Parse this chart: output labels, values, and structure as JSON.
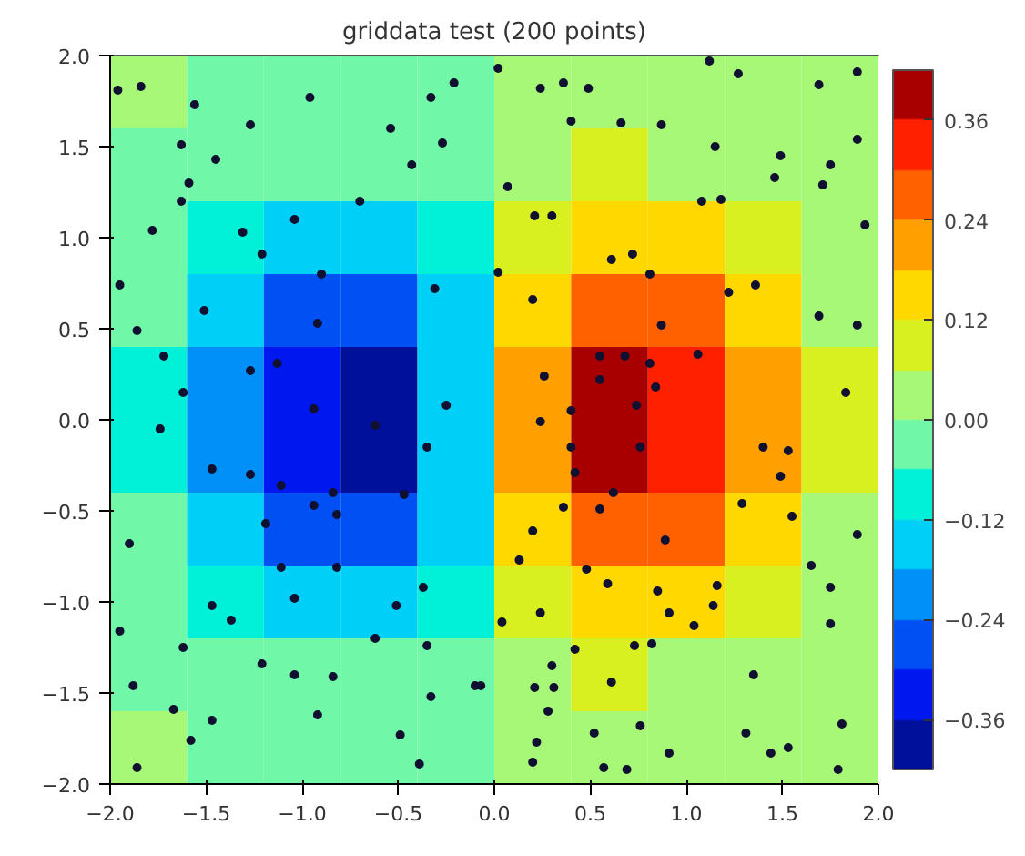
{
  "chart_data": {
    "type": "heatmap",
    "title": "griddata test (200 points)",
    "x": [
      -1.8,
      -1.4,
      -1.0,
      -0.6,
      -0.2,
      0.2,
      0.6,
      1.0,
      1.4,
      1.8
    ],
    "y": [
      1.8,
      1.4,
      1.0,
      0.6,
      0.2,
      -0.2,
      -0.6,
      -1.0,
      -1.4,
      -1.8
    ],
    "cells": [
      [
        0.0,
        -0.01,
        -0.01,
        -0.02,
        -0.01,
        0.01,
        0.02,
        0.01,
        0.01,
        0.0
      ],
      [
        -0.01,
        -0.03,
        -0.05,
        -0.06,
        -0.03,
        0.03,
        0.06,
        0.05,
        0.03,
        0.01
      ],
      [
        -0.03,
        -0.07,
        -0.14,
        -0.15,
        -0.07,
        0.07,
        0.15,
        0.14,
        0.07,
        0.03
      ],
      [
        -0.05,
        -0.14,
        -0.26,
        -0.29,
        -0.13,
        0.13,
        0.29,
        0.26,
        0.14,
        0.05
      ],
      [
        -0.07,
        -0.19,
        -0.35,
        -0.4,
        -0.18,
        0.18,
        0.4,
        0.35,
        0.19,
        0.07
      ],
      [
        -0.07,
        -0.19,
        -0.35,
        -0.4,
        -0.18,
        0.18,
        0.4,
        0.35,
        0.19,
        0.07
      ],
      [
        -0.05,
        -0.14,
        -0.26,
        -0.29,
        -0.13,
        0.13,
        0.29,
        0.26,
        0.14,
        0.05
      ],
      [
        -0.03,
        -0.07,
        -0.14,
        -0.15,
        -0.07,
        0.07,
        0.15,
        0.14,
        0.07,
        0.03
      ],
      [
        -0.01,
        -0.03,
        -0.05,
        -0.06,
        -0.03,
        0.03,
        0.06,
        0.05,
        0.03,
        0.01
      ],
      [
        0.0,
        -0.01,
        -0.01,
        -0.02,
        -0.01,
        0.01,
        0.02,
        0.01,
        0.01,
        0.0
      ]
    ],
    "colors": [
      "#00109a",
      "#0018f0",
      "#0050f4",
      "#0090f8",
      "#00d0f8",
      "#00f0d8",
      "#70f8a8",
      "#a8f878",
      "#d8f020",
      "#ffd800",
      "#ffa000",
      "#ff6000",
      "#ff2000",
      "#a80000"
    ],
    "clim": [
      -0.42,
      0.42
    ],
    "cticks": [
      {
        "value": -0.36,
        "label": "−0.36"
      },
      {
        "value": -0.24,
        "label": "−0.24"
      },
      {
        "value": -0.12,
        "label": "−0.12"
      },
      {
        "value": 0,
        "label": "0.00"
      },
      0.12,
      0.24,
      0.36
    ],
    "xlim": [
      -2.0,
      2.0
    ],
    "ylim": [
      -2.0,
      2.0
    ],
    "xticks": [
      {
        "value": -2,
        "label": "−2.0"
      },
      {
        "value": -1.5,
        "label": "−1.5"
      },
      {
        "value": -1,
        "label": "−1.0"
      },
      {
        "value": -0.5,
        "label": "−0.5"
      },
      {
        "value": 0,
        "label": "0.0"
      },
      0.5,
      {
        "value": 1,
        "label": "1.0"
      },
      1.5,
      {
        "value": 2,
        "label": "2.0"
      }
    ],
    "yticks": [
      {
        "value": -2,
        "label": "−2.0"
      },
      {
        "value": -1.5,
        "label": "−1.5"
      },
      {
        "value": -1,
        "label": "−1.0"
      },
      {
        "value": -0.5,
        "label": "−0.5"
      },
      {
        "value": 0,
        "label": "0.0"
      },
      0.5,
      {
        "value": 1,
        "label": "1.0"
      },
      1.5,
      {
        "value": 2,
        "label": "2.0"
      }
    ],
    "grid": false,
    "marker": "circle",
    "series": [
      {
        "type": "scatter",
        "color": "#101030",
        "x": [
          -1.96,
          -1.84,
          -1.56,
          -1.27,
          -0.96,
          -0.33,
          -0.21,
          -1.63,
          -1.45,
          -1.59,
          -1.63,
          -1.78,
          -1.31,
          -1.04,
          -0.7,
          -0.54,
          -0.43,
          -0.27,
          -1.21,
          -0.9,
          -1.51,
          -0.92,
          -1.86,
          -1.72,
          -0.31,
          -1.27,
          -1.13,
          -0.94,
          -0.62,
          -1.47,
          -1.27,
          -1.11,
          -0.84,
          -0.94,
          -0.82,
          -0.47,
          -1.19,
          -1.74,
          -1.62,
          -0.25,
          -0.35,
          -1.9,
          -1.11,
          -0.82,
          -1.04,
          -1.47,
          -1.37,
          -0.37,
          -0.51,
          -0.62,
          -1.62,
          -1.21,
          -1.04,
          -0.84,
          -0.35,
          -0.33,
          -0.07,
          -1.88,
          -1.67,
          -1.47,
          -1.58,
          -0.92,
          -0.49,
          -0.39,
          -1.86,
          -1.95,
          -1.95,
          0.02,
          0.24,
          0.36,
          0.49,
          1.12,
          1.27,
          1.69,
          1.89,
          0.4,
          0.66,
          0.87,
          1.15,
          1.49,
          1.75,
          1.46,
          1.71,
          1.89,
          0.07,
          0.21,
          0.3,
          1.08,
          1.18,
          1.93,
          0.02,
          0.61,
          0.72,
          0.81,
          0.2,
          1.22,
          1.36,
          1.69,
          1.89,
          0.87,
          1.06,
          0.55,
          0.68,
          0.81,
          0.26,
          0.55,
          0.84,
          1.83,
          0.4,
          0.74,
          0.24,
          0.4,
          0.76,
          1.4,
          1.53,
          0.42,
          1.49,
          0.62,
          0.36,
          0.55,
          1.29,
          1.55,
          0.2,
          0.89,
          1.89,
          0.13,
          0.48,
          1.65,
          0.59,
          0.85,
          1.16,
          1.75,
          0.24,
          0.91,
          1.14,
          0.04,
          1.04,
          1.75,
          0.42,
          0.73,
          0.82,
          0.3,
          1.35,
          0.61,
          -0.1,
          0.21,
          0.31,
          0.28,
          0.52,
          0.76,
          1.31,
          1.81,
          0.22,
          0.91,
          1.44,
          1.53,
          0.57,
          0.69,
          1.79,
          0.2
        ],
        "values": [
          1.81,
          1.83,
          1.73,
          1.62,
          1.77,
          1.77,
          1.85,
          1.51,
          1.43,
          1.3,
          1.2,
          1.04,
          1.03,
          1.1,
          1.2,
          1.6,
          1.4,
          1.52,
          0.91,
          0.8,
          0.6,
          0.53,
          0.49,
          0.35,
          0.72,
          0.27,
          0.31,
          0.06,
          -0.03,
          -0.27,
          -0.3,
          -0.36,
          -0.4,
          -0.47,
          -0.52,
          -0.41,
          -0.57,
          -0.05,
          0.15,
          0.08,
          -0.15,
          -0.68,
          -0.81,
          -0.81,
          -0.98,
          -1.02,
          -1.1,
          -0.92,
          -1.02,
          -1.2,
          -1.25,
          -1.34,
          -1.4,
          -1.41,
          -1.24,
          -1.52,
          -1.46,
          -1.46,
          -1.59,
          -1.65,
          -1.76,
          -1.62,
          -1.73,
          -1.89,
          -1.91,
          -1.16,
          0.74,
          1.93,
          1.82,
          1.85,
          1.82,
          1.97,
          1.9,
          1.84,
          1.91,
          1.64,
          1.63,
          1.62,
          1.5,
          1.45,
          1.4,
          1.33,
          1.29,
          1.54,
          1.28,
          1.12,
          1.12,
          1.2,
          1.21,
          1.07,
          0.81,
          0.88,
          0.91,
          0.8,
          0.66,
          0.7,
          0.74,
          0.57,
          0.52,
          0.52,
          0.36,
          0.35,
          0.35,
          0.31,
          0.24,
          0.22,
          0.18,
          0.15,
          0.05,
          0.08,
          -0.01,
          -0.15,
          -0.15,
          -0.15,
          -0.17,
          -0.29,
          -0.31,
          -0.4,
          -0.48,
          -0.49,
          -0.46,
          -0.53,
          -0.61,
          -0.66,
          -0.63,
          -0.77,
          -0.82,
          -0.8,
          -0.9,
          -0.94,
          -0.91,
          -0.92,
          -1.06,
          -1.06,
          -1.02,
          -1.11,
          -1.13,
          -1.12,
          -1.26,
          -1.24,
          -1.23,
          -1.35,
          -1.4,
          -1.44,
          -1.46,
          -1.47,
          -1.47,
          -1.6,
          -1.72,
          -1.68,
          -1.72,
          -1.67,
          -1.77,
          -1.83,
          -1.83,
          -1.8,
          -1.91,
          -1.92,
          -1.92,
          -1.88
        ]
      }
    ]
  }
}
